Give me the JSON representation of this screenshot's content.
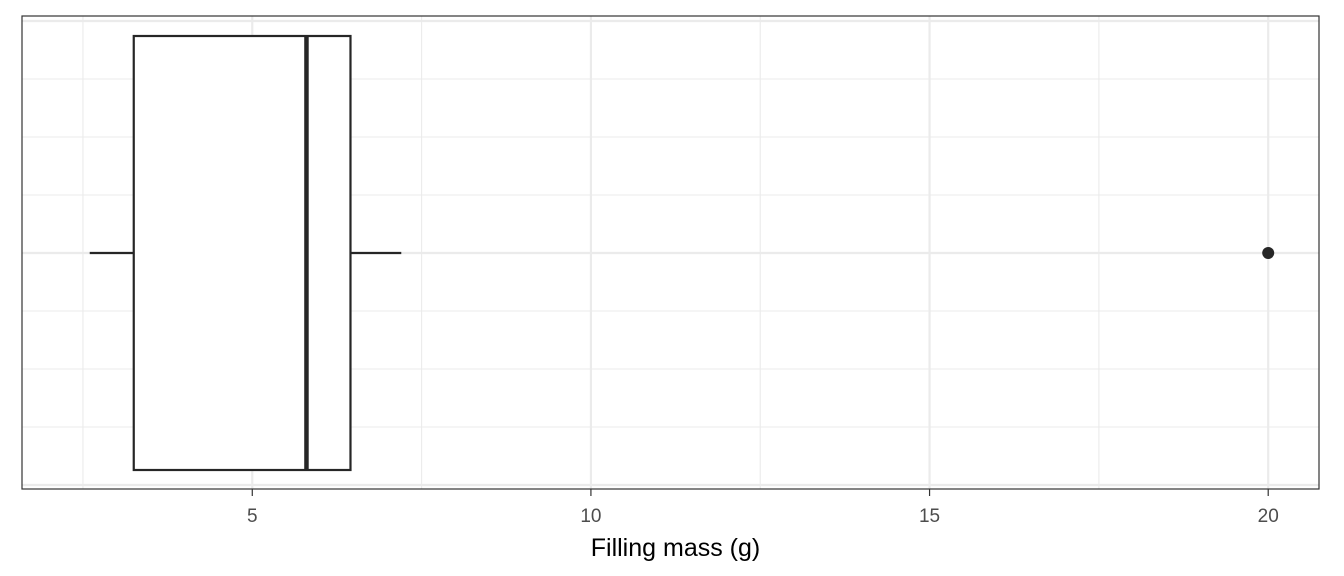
{
  "chart_data": {
    "type": "boxplot",
    "orientation": "horizontal",
    "xlabel": "Filling mass (g)",
    "ylabel": "",
    "xlim": [
      1.6,
      20.75
    ],
    "x_ticks": [
      5,
      10,
      15,
      20
    ],
    "x_tick_labels": [
      "5",
      "10",
      "15",
      "20"
    ],
    "minor_grid": [
      2.5,
      7.5,
      12.5,
      17.5
    ],
    "grid": true,
    "legend": "none",
    "box": {
      "whisker_low": 2.6,
      "q1": 3.25,
      "median": 5.8,
      "q3": 6.45,
      "whisker_high": 7.2,
      "outliers": [
        20
      ]
    },
    "colors": {
      "stroke": "#262626",
      "grid": "#ebebeb",
      "panel_border": "#333333",
      "background": "#ffffff"
    }
  }
}
